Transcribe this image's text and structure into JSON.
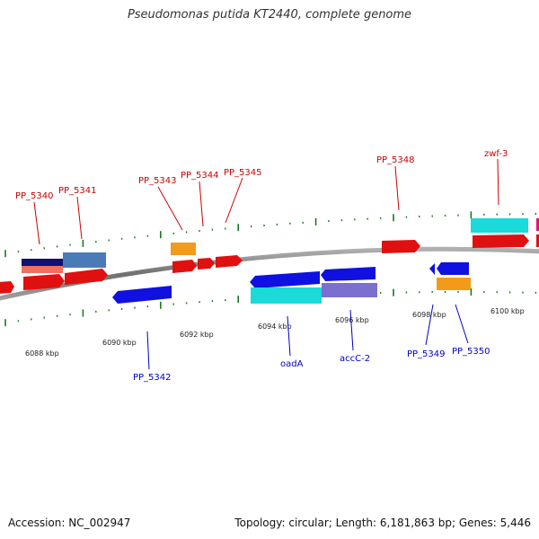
{
  "title": "Pseudomonas putida KT2440, complete genome",
  "footer": {
    "accession": "Accession: NC_002947",
    "summary": "Topology: circular; Length: 6,181,863 bp; Genes: 5,446"
  },
  "axis_ticks": [
    "6088 kbp",
    "6090 kbp",
    "6092 kbp",
    "6094 kbp",
    "6096 kbp",
    "6098 kbp",
    "6100 kbp"
  ],
  "labels_top": [
    "PP_5340",
    "PP_5341",
    "PP_5343",
    "PP_5344",
    "PP_5345",
    "PP_5348",
    "zwf-3"
  ],
  "labels_bottom": [
    "PP_5342",
    "oadA",
    "accC-2",
    "PP_5349",
    "PP_5350"
  ],
  "colors": {
    "forward_gene": "#e01010",
    "reverse_gene": "#1010e0",
    "backbone": "#808080",
    "tick": "#1a7a1a",
    "cds_orange": "#f29a1a",
    "cds_cyan": "#1adada",
    "cds_lavender": "#7b6fd0",
    "cds_steel": "#4a7ab8",
    "cds_navy": "#101070",
    "cds_salmon": "#f07060"
  }
}
